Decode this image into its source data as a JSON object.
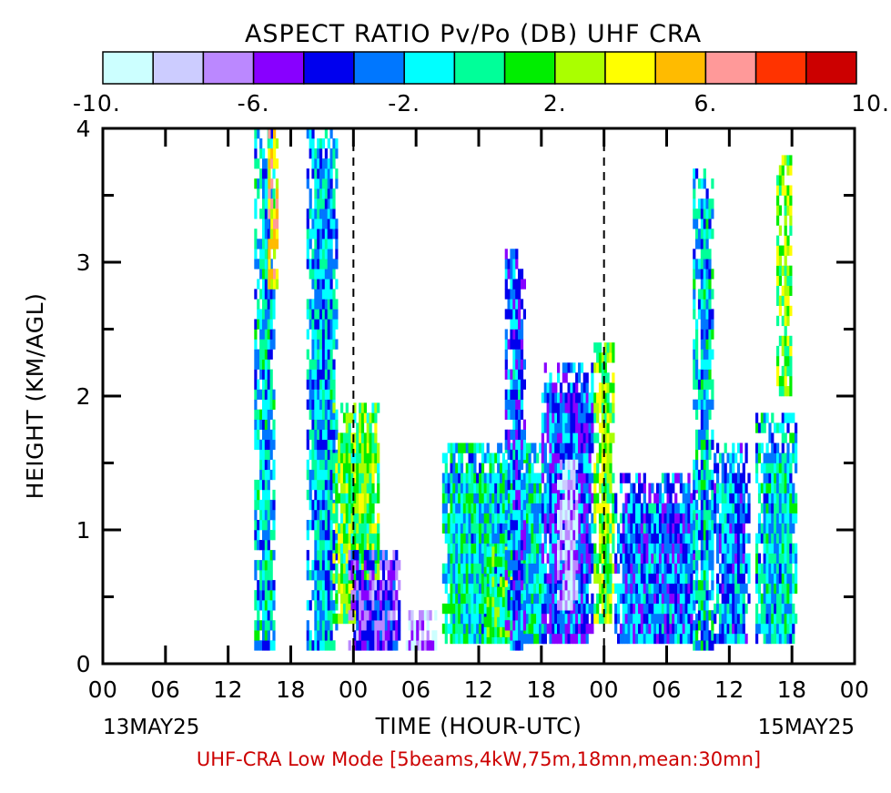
{
  "chart_data": {
    "type": "heatmap",
    "title": "ASPECT RATIO Pv/Po (DB) UHF CRA",
    "colorbar": {
      "colors": [
        "#ccffff",
        "#ccccff",
        "#bb88ff",
        "#8800ff",
        "#0000ee",
        "#0077ff",
        "#00ffff",
        "#00ff99",
        "#00ee00",
        "#aaff00",
        "#ffff00",
        "#ffbb00",
        "#ff9999",
        "#ff3300",
        "#cc0000"
      ],
      "range": [
        -10,
        10
      ],
      "tick_labels": [
        "-10.",
        "-6.",
        "-2.",
        "2.",
        "6.",
        "10."
      ],
      "tick_values": [
        -10,
        -6,
        -2,
        2,
        6,
        10
      ]
    },
    "xlabel": "TIME (HOUR-UTC)",
    "ylabel": "HEIGHT (KM/AGL)",
    "x_tick_labels": [
      "00",
      "06",
      "12",
      "18",
      "00",
      "06",
      "12",
      "18",
      "00",
      "06",
      "12",
      "18",
      "00"
    ],
    "x_range_hours": [
      0,
      72
    ],
    "y_tick_labels": [
      "0",
      "1",
      "2",
      "3",
      "4"
    ],
    "ylim": [
      0,
      4
    ],
    "date_labels": [
      "13MAY25",
      "15MAY25"
    ],
    "day_boundaries_hours": [
      24,
      48
    ],
    "footer": "UHF-CRA Low Mode [5beams,4kW,75m,18mn,mean:30mn]",
    "regions": [
      {
        "t0": 14.5,
        "t1": 16.5,
        "h0": 0.1,
        "h1": 4.0,
        "value": -1.5
      },
      {
        "t0": 15.8,
        "t1": 16.6,
        "h0": 2.8,
        "h1": 4.0,
        "value": 4.5
      },
      {
        "t0": 19.5,
        "t1": 22.5,
        "h0": 0.1,
        "h1": 4.0,
        "value": -1.8
      },
      {
        "t0": 22.0,
        "t1": 26.5,
        "h0": 0.3,
        "h1": 1.9,
        "value": 1.5
      },
      {
        "t0": 23.5,
        "t1": 28.5,
        "h0": 0.1,
        "h1": 0.8,
        "value": -5.0
      },
      {
        "t0": 29.0,
        "t1": 32.0,
        "h0": 0.1,
        "h1": 0.4,
        "value": -7.0
      },
      {
        "t0": 32.5,
        "t1": 42.5,
        "h0": 0.15,
        "h1": 1.6,
        "value": -1.0
      },
      {
        "t0": 36.5,
        "t1": 39.5,
        "h0": 0.2,
        "h1": 0.8,
        "value": 1.0
      },
      {
        "t0": 38.5,
        "t1": 40.5,
        "h0": 0.1,
        "h1": 3.1,
        "value": -3.0
      },
      {
        "t0": 42.0,
        "t1": 47.0,
        "h0": 0.15,
        "h1": 2.2,
        "value": -3.5
      },
      {
        "t0": 43.5,
        "t1": 45.5,
        "h0": 0.4,
        "h1": 1.5,
        "value": -8.0
      },
      {
        "t0": 47.0,
        "t1": 49.0,
        "h0": 0.3,
        "h1": 2.4,
        "value": 2.0
      },
      {
        "t0": 49.0,
        "t1": 57.0,
        "h0": 0.15,
        "h1": 1.4,
        "value": -3.0
      },
      {
        "t0": 56.5,
        "t1": 58.5,
        "h0": 0.1,
        "h1": 3.7,
        "value": -1.5
      },
      {
        "t0": 58.5,
        "t1": 62.0,
        "h0": 0.15,
        "h1": 1.6,
        "value": -2.5
      },
      {
        "t0": 62.5,
        "t1": 66.5,
        "h0": 0.15,
        "h1": 1.8,
        "value": -1.2
      },
      {
        "t0": 64.5,
        "t1": 66.0,
        "h0": 2.0,
        "h1": 3.8,
        "value": 2.0
      }
    ]
  }
}
